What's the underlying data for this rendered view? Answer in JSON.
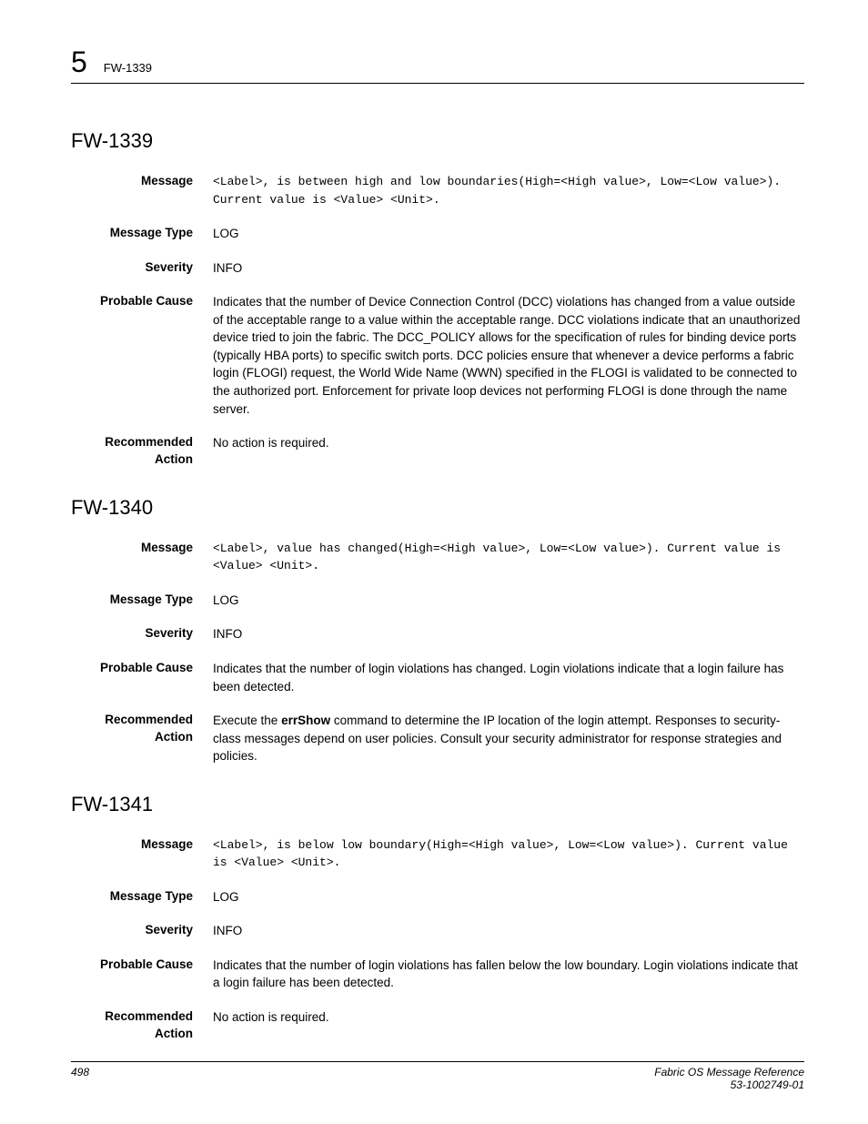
{
  "header": {
    "chapter_number": "5",
    "code": "FW-1339"
  },
  "labels": {
    "message": "Message",
    "message_type": "Message Type",
    "severity": "Severity",
    "probable_cause": "Probable Cause",
    "recommended_action_l1": "Recommended",
    "recommended_action_l2": "Action"
  },
  "sections": [
    {
      "title": "FW-1339",
      "message": "<Label>, is between high and low boundaries(High=<High value>, Low=<Low value>). Current value is <Value> <Unit>.",
      "message_type": "LOG",
      "severity": "INFO",
      "probable_cause": "Indicates that the number of Device Connection Control (DCC) violations has changed from a value outside of the acceptable range to a value within the acceptable range. DCC violations indicate that an unauthorized device tried to join the fabric. The DCC_POLICY allows for the specification of rules for binding device ports (typically HBA ports) to specific switch ports. DCC policies ensure that whenever a device performs a fabric login (FLOGI) request, the World Wide Name (WWN) specified in the FLOGI is validated to be connected to the authorized port. Enforcement for private loop devices not performing FLOGI is done through the name server.",
      "recommended_action_pre": "No action is required.",
      "recommended_action_bold": "",
      "recommended_action_post": ""
    },
    {
      "title": "FW-1340",
      "message": "<Label>, value has changed(High=<High value>, Low=<Low value>). Current value is <Value> <Unit>.",
      "message_type": "LOG",
      "severity": "INFO",
      "probable_cause": "Indicates that the number of login violations has changed. Login violations indicate that a login failure has been detected.",
      "recommended_action_pre": "Execute the ",
      "recommended_action_bold": "errShow",
      "recommended_action_post": " command to determine the IP location of the login attempt. Responses to security-class messages depend on user policies. Consult your security administrator for response strategies and policies."
    },
    {
      "title": "FW-1341",
      "message": "<Label>, is below low boundary(High=<High value>, Low=<Low value>). Current value is <Value> <Unit>.",
      "message_type": "LOG",
      "severity": "INFO",
      "probable_cause": "Indicates that the number of login violations has fallen below the low boundary. Login violations indicate that a login failure has been detected.",
      "recommended_action_pre": "No action is required.",
      "recommended_action_bold": "",
      "recommended_action_post": ""
    }
  ],
  "footer": {
    "page_number": "498",
    "doc_title": "Fabric OS Message Reference",
    "doc_number": "53-1002749-01"
  }
}
